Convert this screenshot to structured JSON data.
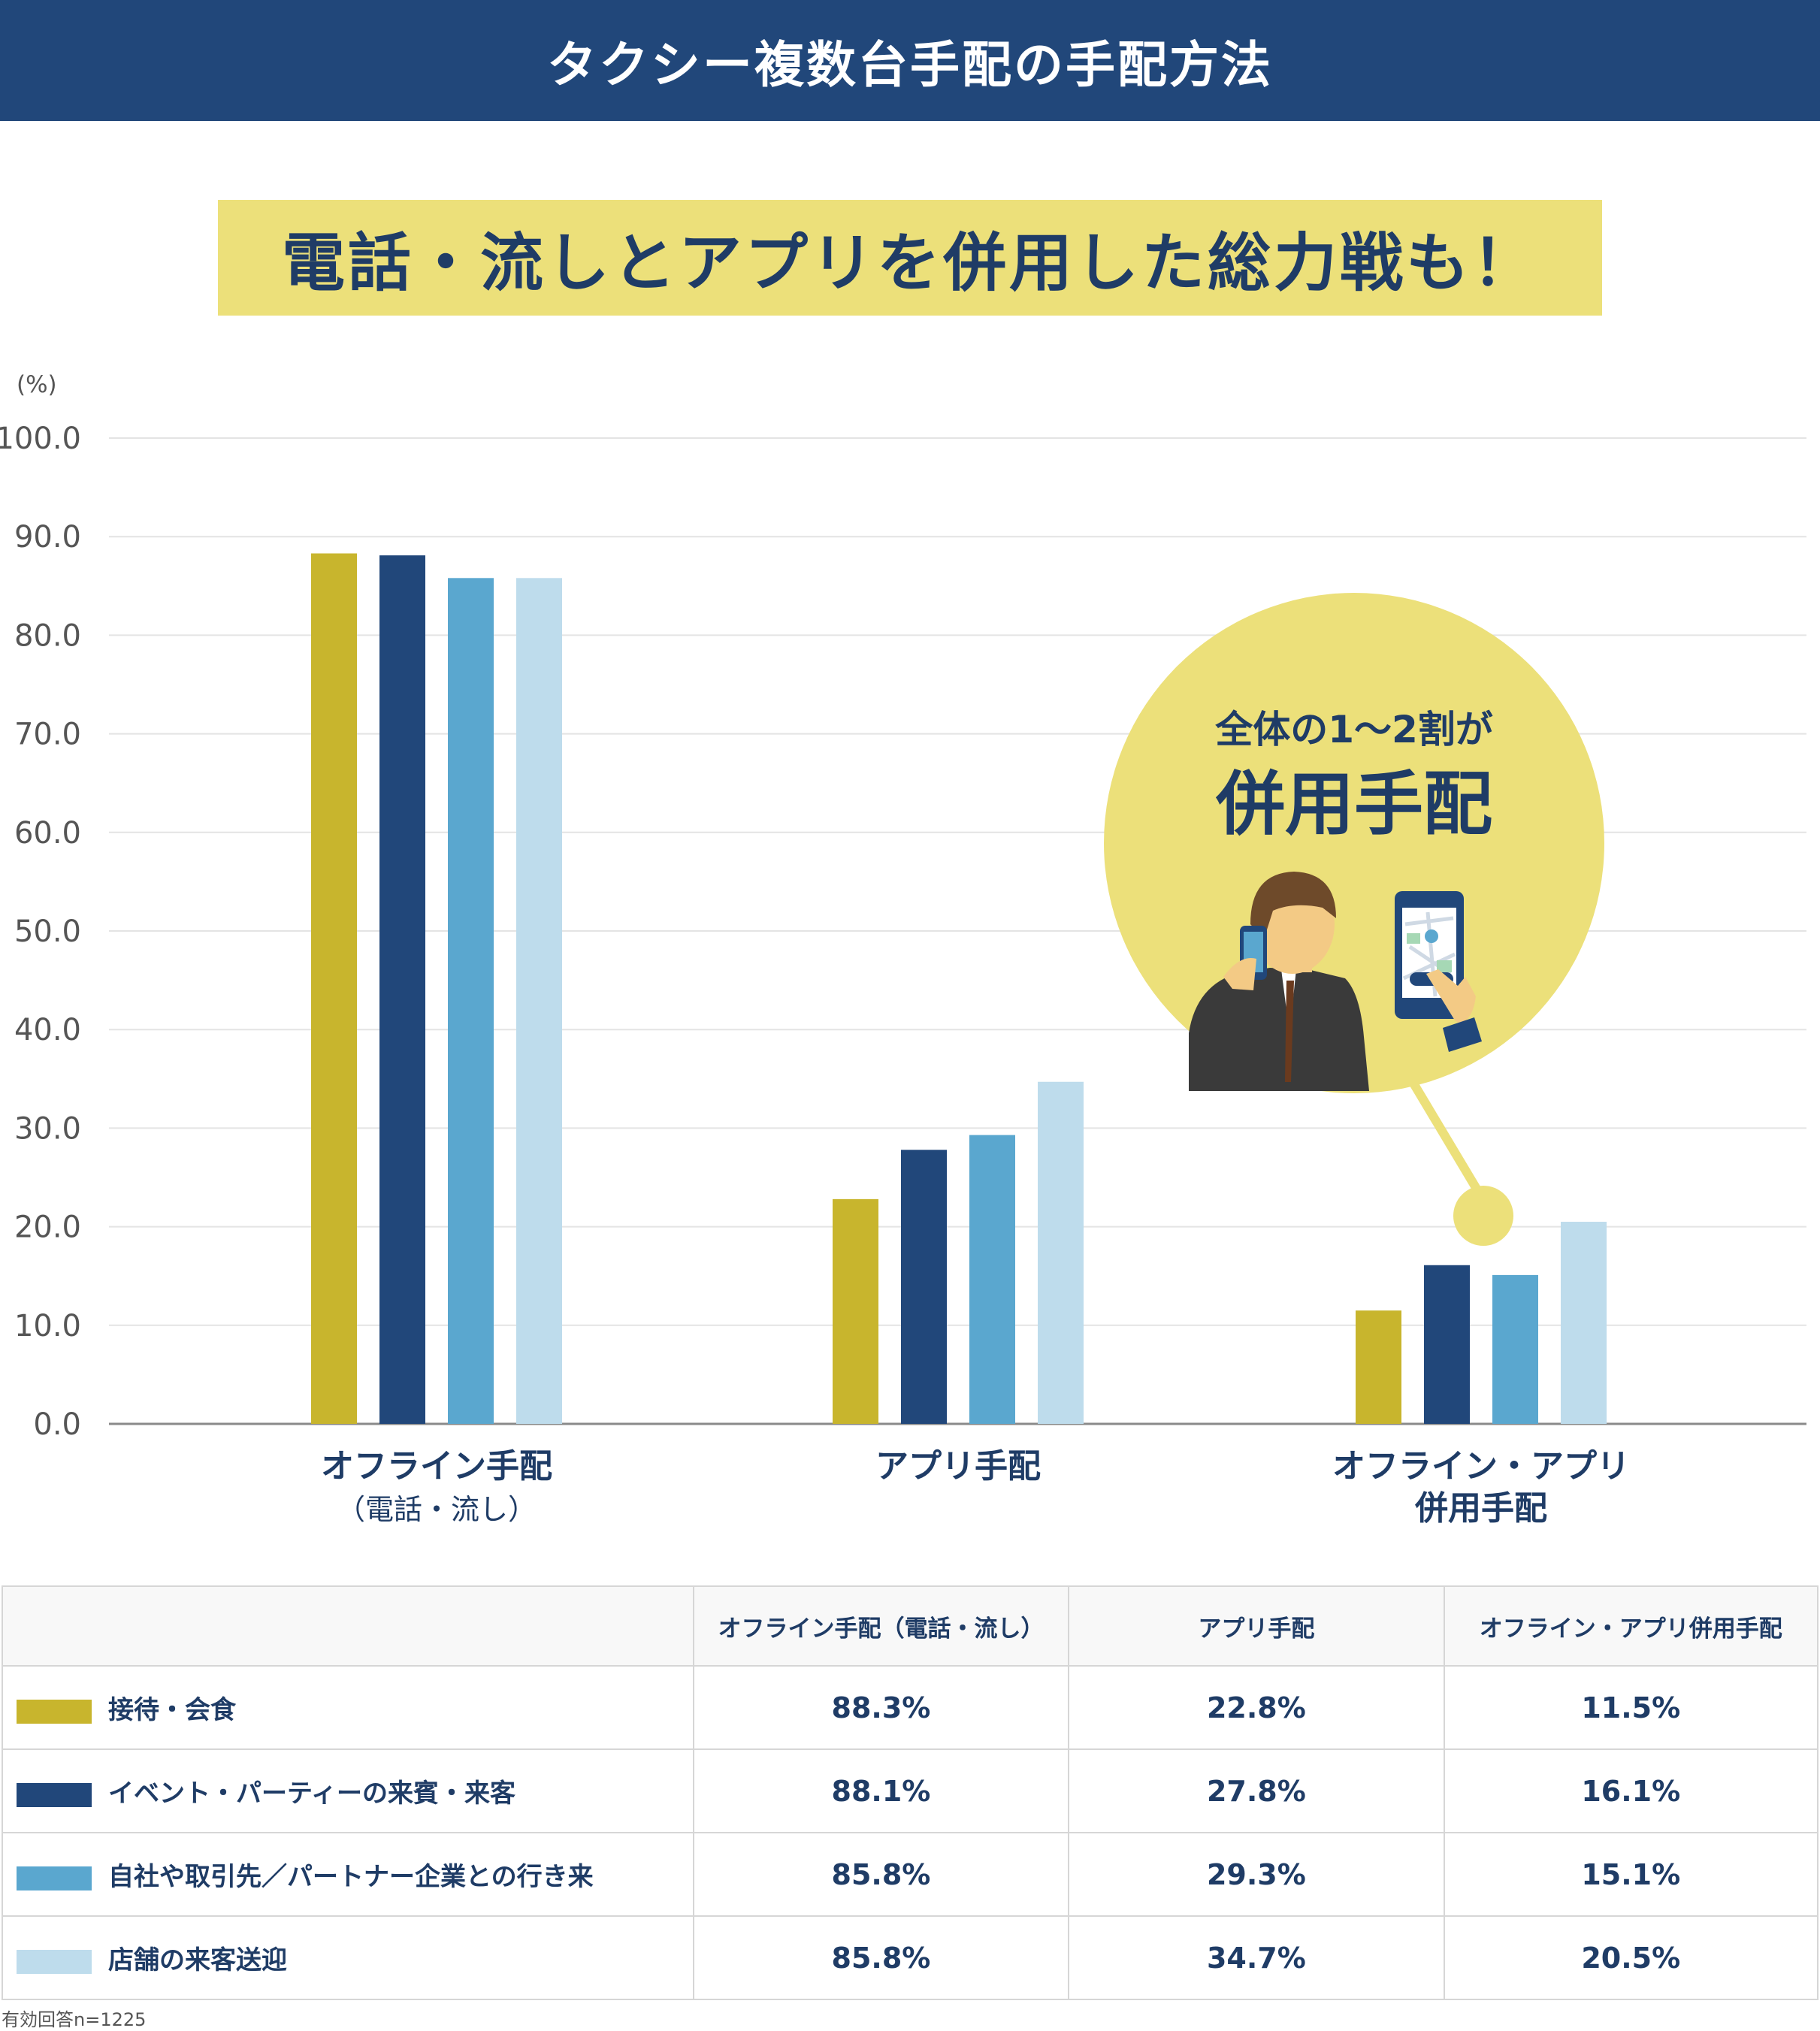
{
  "header": {
    "title": "タクシー複数台手配の手配方法"
  },
  "subtitle": {
    "text": "電話・流しとアプリを併用した総力戦も！"
  },
  "callout": {
    "line1": "全体の1〜2割が",
    "line2": "併用手配"
  },
  "colors": {
    "header_bg": "#21477a",
    "accent_yellow": "#ece07a",
    "text_navy": "#1f3c66",
    "series": [
      "#c8b52d",
      "#21477a",
      "#5aa7cf",
      "#bedcec"
    ]
  },
  "chart_data": {
    "type": "bar",
    "unit_label": "(%)",
    "ylim": [
      0,
      100
    ],
    "yticks": [
      "0.0",
      "10.0",
      "20.0",
      "30.0",
      "40.0",
      "50.0",
      "60.0",
      "70.0",
      "80.0",
      "90.0",
      "100.0"
    ],
    "grid": true,
    "categories": [
      [
        "オフライン手配",
        "（電話・流し）"
      ],
      [
        "アプリ手配"
      ],
      [
        "オフライン・アプリ",
        "併用手配"
      ]
    ],
    "series": [
      {
        "name": "接待・会食",
        "values": [
          88.3,
          22.8,
          11.5
        ]
      },
      {
        "name": "イベント・パーティーの来賓・来客",
        "values": [
          88.1,
          27.8,
          16.1
        ]
      },
      {
        "name": "自社や取引先／パートナー企業との行き来",
        "values": [
          85.8,
          29.3,
          15.1
        ]
      },
      {
        "name": "店舗の来客送迎",
        "values": [
          85.8,
          34.7,
          20.5
        ]
      }
    ]
  },
  "table": {
    "headers": [
      "",
      "オフライン手配（電話・流し）",
      "アプリ手配",
      "オフライン・アプリ併用手配"
    ],
    "rows": [
      {
        "label": "接待・会食",
        "cells": [
          "88.3%",
          "22.8%",
          "11.5%"
        ]
      },
      {
        "label": "イベント・パーティーの来賓・来客",
        "cells": [
          "88.1%",
          "27.8%",
          "16.1%"
        ]
      },
      {
        "label": "自社や取引先／パートナー企業との行き来",
        "cells": [
          "85.8%",
          "29.3%",
          "15.1%"
        ]
      },
      {
        "label": "店舗の来客送迎",
        "cells": [
          "85.8%",
          "34.7%",
          "20.5%"
        ]
      }
    ]
  },
  "footnote": "有効回答n=1225"
}
